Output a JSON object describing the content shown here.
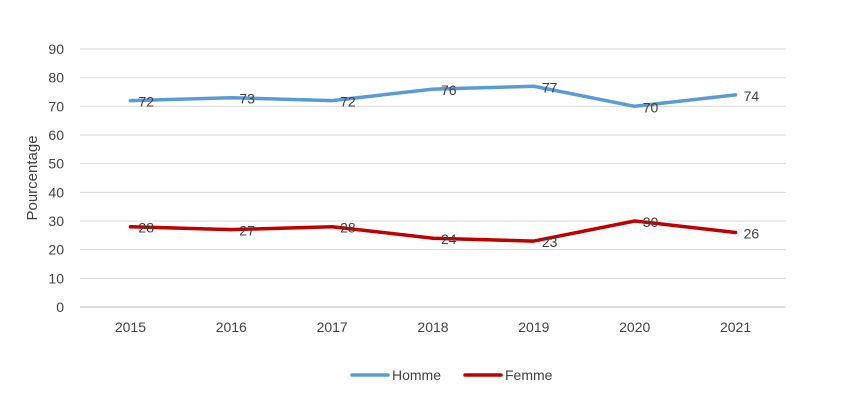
{
  "chart_data": {
    "type": "line",
    "title": "",
    "xlabel": "",
    "ylabel": "Pourcentage",
    "ylim": [
      0,
      90
    ],
    "ytick_step": 10,
    "grid": true,
    "legend_position": "bottom",
    "categories": [
      "2015",
      "2016",
      "2017",
      "2018",
      "2019",
      "2020",
      "2021"
    ],
    "series": [
      {
        "name": "Homme",
        "color": "#5B9BD5",
        "values": [
          72,
          73,
          72,
          76,
          77,
          70,
          74
        ]
      },
      {
        "name": "Femme",
        "color": "#C00000",
        "values": [
          28,
          27,
          28,
          24,
          23,
          30,
          26
        ]
      }
    ]
  }
}
